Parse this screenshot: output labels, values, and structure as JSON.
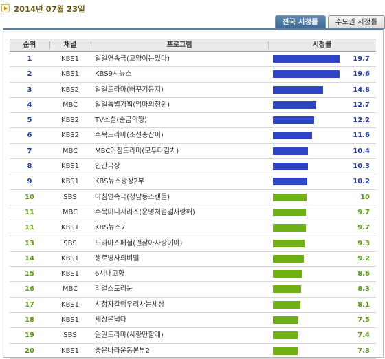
{
  "header": {
    "date": "2014년 07월 23일"
  },
  "tabs": [
    {
      "label": "전국 시청률",
      "active": true
    },
    {
      "label": "수도권 시청률",
      "active": false
    }
  ],
  "columns": {
    "rank": "순위",
    "channel": "채널",
    "program": "프로그램",
    "rating": "시청률"
  },
  "colors": {
    "blue_bar": "#2e45c4",
    "green_bar": "#6fb017",
    "blue_text": "#1f3a9c",
    "green_text": "#5d9a12"
  },
  "rows": [
    {
      "rank": "1",
      "channel": "KBS1",
      "program": "일일연속극(고양이는있다)",
      "rating": "19.7",
      "group": "blue"
    },
    {
      "rank": "2",
      "channel": "KBS1",
      "program": "KBS9시뉴스",
      "rating": "19.6",
      "group": "blue"
    },
    {
      "rank": "3",
      "channel": "KBS2",
      "program": "일일드라마(뻐꾸기둥지)",
      "rating": "14.8",
      "group": "blue"
    },
    {
      "rank": "4",
      "channel": "MBC",
      "program": "일일특별기획(엄마의정원)",
      "rating": "12.7",
      "group": "blue"
    },
    {
      "rank": "5",
      "channel": "KBS2",
      "program": "TV소설(순금의땅)",
      "rating": "12.2",
      "group": "blue"
    },
    {
      "rank": "6",
      "channel": "KBS2",
      "program": "수목드라마(조선총잡이)",
      "rating": "11.6",
      "group": "blue"
    },
    {
      "rank": "7",
      "channel": "MBC",
      "program": "MBC아침드라마(모두다김치)",
      "rating": "10.4",
      "group": "blue"
    },
    {
      "rank": "8",
      "channel": "KBS1",
      "program": "인간극장",
      "rating": "10.3",
      "group": "blue"
    },
    {
      "rank": "9",
      "channel": "KBS1",
      "program": "KBS뉴스광장2부",
      "rating": "10.2",
      "group": "blue"
    },
    {
      "rank": "10",
      "channel": "SBS",
      "program": "아침연속극(청담동스캔들)",
      "rating": "10",
      "group": "green"
    },
    {
      "rank": "11",
      "channel": "MBC",
      "program": "수목미니시리즈(운명처럼널사랑해)",
      "rating": "9.7",
      "group": "green"
    },
    {
      "rank": "11",
      "channel": "KBS1",
      "program": "KBS뉴스7",
      "rating": "9.7",
      "group": "green"
    },
    {
      "rank": "13",
      "channel": "SBS",
      "program": "드라마스페셜(괜찮아사랑이야)",
      "rating": "9.3",
      "group": "green"
    },
    {
      "rank": "14",
      "channel": "KBS1",
      "program": "생로병사의비밀",
      "rating": "9.2",
      "group": "green"
    },
    {
      "rank": "15",
      "channel": "KBS1",
      "program": "6시내고향",
      "rating": "8.6",
      "group": "green"
    },
    {
      "rank": "16",
      "channel": "MBC",
      "program": "리얼스토리눈",
      "rating": "8.3",
      "group": "green"
    },
    {
      "rank": "17",
      "channel": "KBS1",
      "program": "시청자칼럼우리사는세상",
      "rating": "8.1",
      "group": "green"
    },
    {
      "rank": "18",
      "channel": "KBS1",
      "program": "세상은넓다",
      "rating": "7.5",
      "group": "green"
    },
    {
      "rank": "19",
      "channel": "SBS",
      "program": "일일드라마(사랑만할래)",
      "rating": "7.4",
      "group": "green"
    },
    {
      "rank": "20",
      "channel": "KBS1",
      "program": "좋은나라운동본부2",
      "rating": "7.3",
      "group": "green"
    }
  ]
}
